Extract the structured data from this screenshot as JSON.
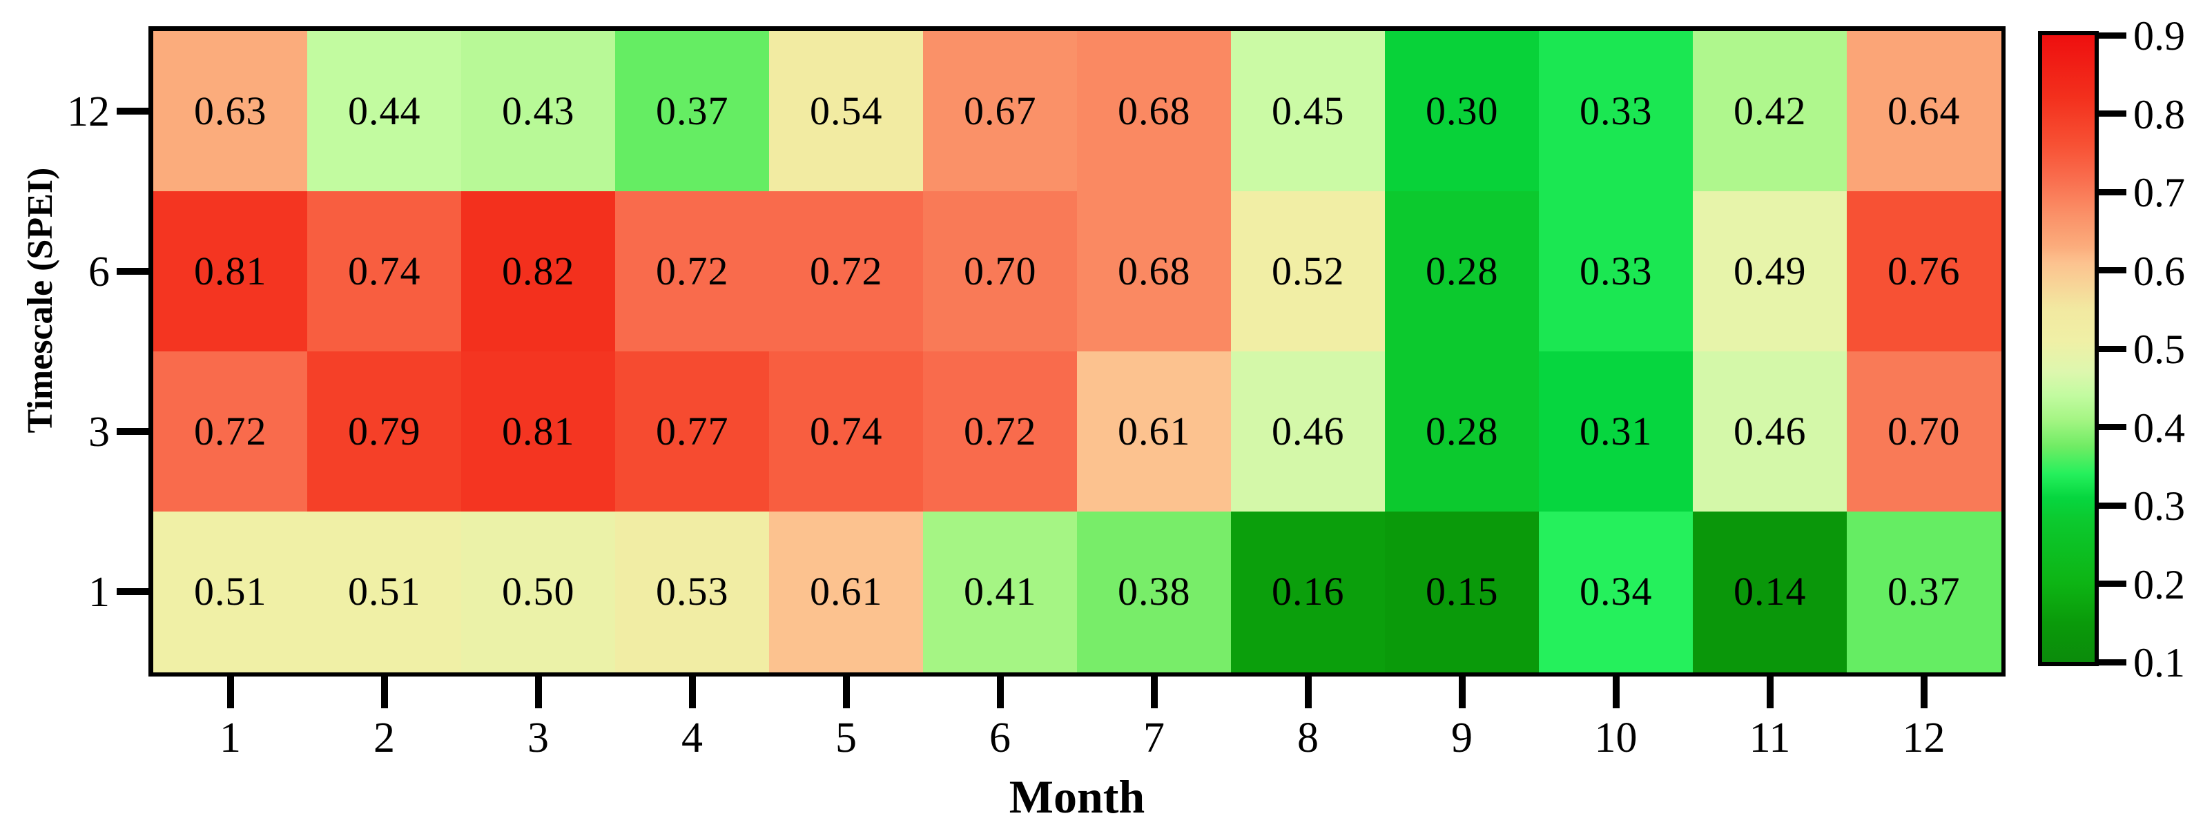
{
  "chart_data": {
    "type": "heatmap",
    "title": "",
    "xlabel": "Month",
    "ylabel": "Timescale (SPEI)",
    "x_categories": [
      "1",
      "2",
      "3",
      "4",
      "5",
      "6",
      "7",
      "8",
      "9",
      "10",
      "11",
      "12"
    ],
    "y_categories_top_to_bottom": [
      "12",
      "6",
      "3",
      "1"
    ],
    "series": [
      {
        "name": "12",
        "values": [
          0.63,
          0.44,
          0.43,
          0.37,
          0.54,
          0.67,
          0.68,
          0.45,
          0.3,
          0.33,
          0.42,
          0.64
        ]
      },
      {
        "name": "6",
        "values": [
          0.81,
          0.74,
          0.82,
          0.72,
          0.72,
          0.7,
          0.68,
          0.52,
          0.28,
          0.33,
          0.49,
          0.76
        ]
      },
      {
        "name": "3",
        "values": [
          0.72,
          0.79,
          0.81,
          0.77,
          0.74,
          0.72,
          0.61,
          0.46,
          0.28,
          0.31,
          0.46,
          0.7
        ]
      },
      {
        "name": "1",
        "values": [
          0.51,
          0.51,
          0.5,
          0.53,
          0.61,
          0.41,
          0.38,
          0.16,
          0.15,
          0.34,
          0.14,
          0.37
        ]
      }
    ],
    "value_decimals": 2,
    "grid": "off",
    "legend": "colorbar-right",
    "colorbar": {
      "min": 0.1,
      "max": 0.9,
      "tick_labels_top_to_bottom": [
        "0.9",
        "0.8",
        "0.7",
        "0.6",
        "0.5",
        "0.4",
        "0.3",
        "0.2",
        "0.1"
      ]
    },
    "colormap_stops": [
      [
        0.1,
        "#0b8b0b"
      ],
      [
        0.15,
        "#0a9a0a"
      ],
      [
        0.2,
        "#0db414"
      ],
      [
        0.28,
        "#0cc92e"
      ],
      [
        0.31,
        "#06d63f"
      ],
      [
        0.34,
        "#25f05c"
      ],
      [
        0.375,
        "#70ec64"
      ],
      [
        0.41,
        "#a5f584"
      ],
      [
        0.44,
        "#c2fba0"
      ],
      [
        0.47,
        "#ddf7ae"
      ],
      [
        0.51,
        "#f0f0a6"
      ],
      [
        0.55,
        "#f2e9a1"
      ],
      [
        0.61,
        "#fcc28f"
      ],
      [
        0.63,
        "#fbac7c"
      ],
      [
        0.67,
        "#fa9168"
      ],
      [
        0.72,
        "#f96b4c"
      ],
      [
        0.76,
        "#f75134"
      ],
      [
        0.82,
        "#f3301d"
      ],
      [
        0.9,
        "#ee0f0f"
      ]
    ],
    "cell_text_color": "#000000",
    "axis_color": "#000000",
    "background_color": "#ffffff"
  }
}
